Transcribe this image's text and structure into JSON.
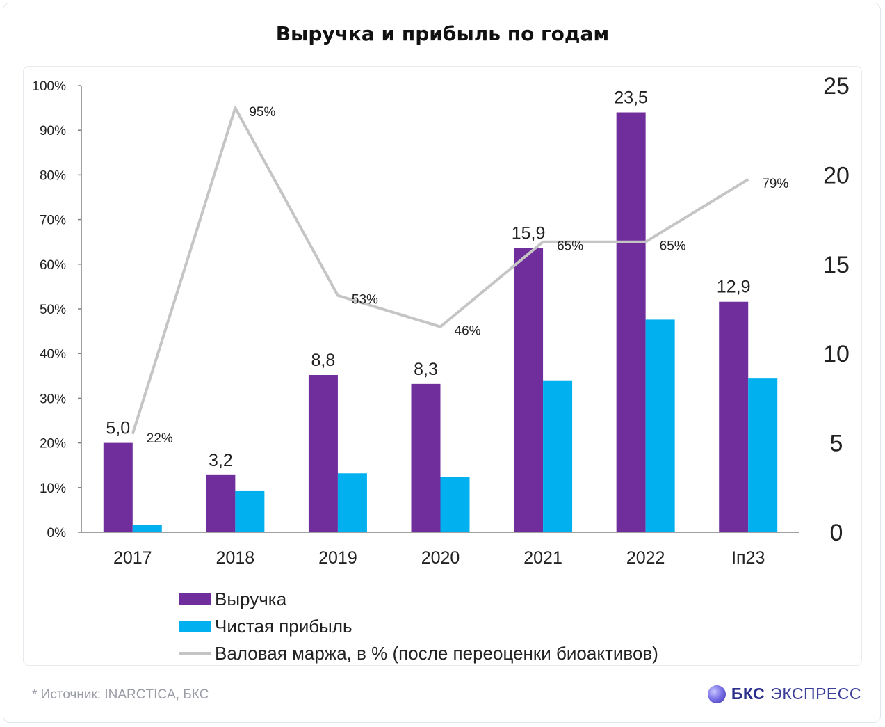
{
  "title": "Выручка и прибыль по годам",
  "footer": {
    "source": "*  Источник: INARCTICA, БКС"
  },
  "brand": {
    "logo_icon": "bks-sphere-icon",
    "bold": "БКС",
    "rest": "ЭКСПРЕСС"
  },
  "colors": {
    "revenue": "#702e9c",
    "profit": "#00b0ef",
    "margin": "#c5c5c5",
    "axis": "#808080"
  },
  "chart_data": {
    "type": "bar",
    "categories": [
      "2017",
      "2018",
      "2019",
      "2020",
      "2021",
      "2022",
      "Iп23"
    ],
    "left_axis": {
      "ylim": [
        0,
        100
      ],
      "ticks": [
        "0%",
        "10%",
        "20%",
        "30%",
        "40%",
        "50%",
        "60%",
        "70%",
        "80%",
        "90%",
        "100%"
      ]
    },
    "right_axis": {
      "ylim": [
        0,
        25
      ],
      "ticks": [
        "0",
        "5",
        "10",
        "15",
        "20",
        "25"
      ]
    },
    "series": [
      {
        "name": "Выручка",
        "type": "bar",
        "axis": "right",
        "values": [
          5.0,
          3.2,
          8.8,
          8.3,
          15.9,
          23.5,
          12.9
        ],
        "labels": [
          "5,0",
          "3,2",
          "8,8",
          "8,3",
          "15,9",
          "23,5",
          "12,9"
        ]
      },
      {
        "name": "Чистая прибыль",
        "type": "bar",
        "axis": "right",
        "values": [
          0.4,
          2.3,
          3.3,
          3.1,
          8.5,
          11.9,
          8.6
        ]
      },
      {
        "name": "Валовая маржа, в % (после переоценки биоактивов)",
        "type": "line",
        "axis": "left",
        "values": [
          22,
          95,
          53,
          46,
          65,
          65,
          79
        ],
        "labels": [
          "22%",
          "95%",
          "53%",
          "46%",
          "65%",
          "65%",
          "79%"
        ]
      }
    ],
    "legend_position": "bottom-left",
    "grid": false
  }
}
